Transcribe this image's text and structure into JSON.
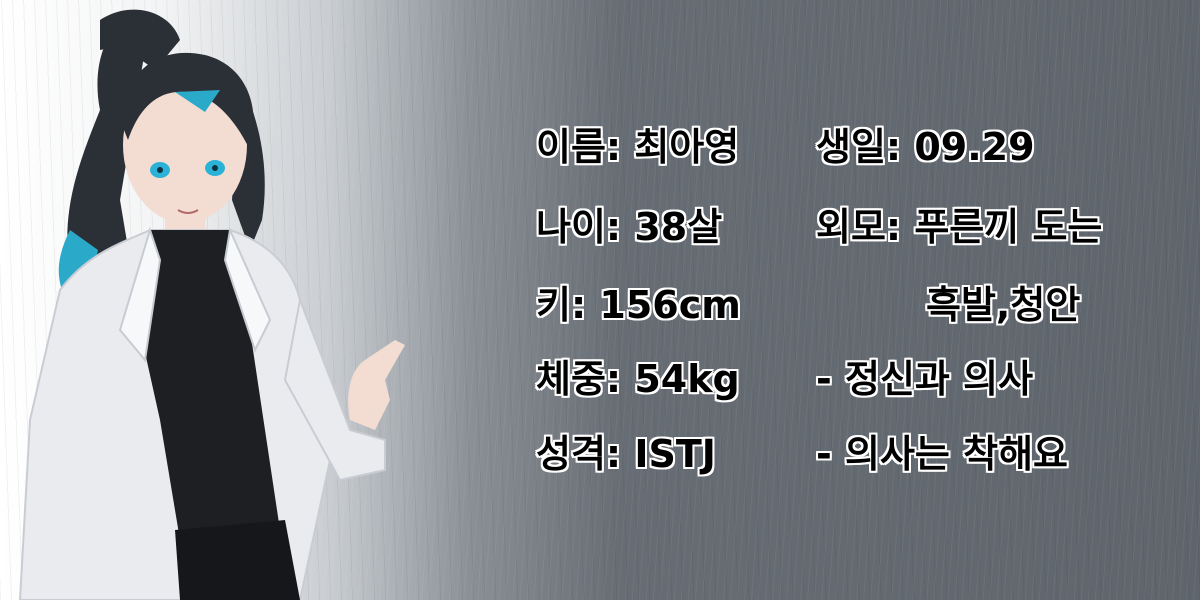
{
  "profile": {
    "name": "이름: 최아영",
    "birthday": "생일: 09.29",
    "age": "나이: 38살",
    "appearance": "외모: 푸른끼 도는",
    "appearance_cont": "흑발,청안",
    "height": "키: 156cm",
    "weight": "체중: 54kg",
    "job": "- 정신과 의사",
    "personality": "성격: ISTJ",
    "note": "- 의사는 착해요"
  }
}
